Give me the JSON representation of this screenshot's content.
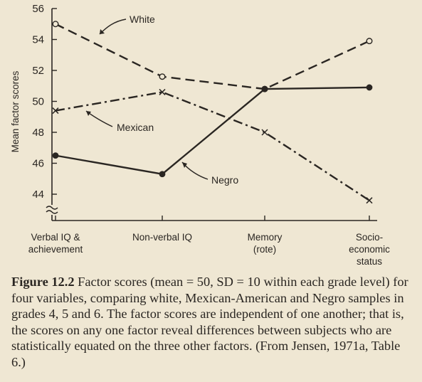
{
  "chart_data": {
    "type": "line",
    "ylabel": "Mean factor scores",
    "ylim": [
      43,
      56
    ],
    "y_ticks": [
      "56",
      "54",
      "52",
      "50",
      "48",
      "46",
      "44"
    ],
    "y_axis_break": true,
    "categories": [
      [
        "Verbal IQ &",
        "achievement"
      ],
      [
        "Non-verbal IQ"
      ],
      [
        "Memory",
        "(rote)"
      ],
      [
        "Socio-",
        "economic",
        "status"
      ]
    ],
    "series": [
      {
        "name": "White",
        "values": [
          55.0,
          51.6,
          50.8,
          53.9
        ],
        "line": "dashed",
        "marker": "open-circle"
      },
      {
        "name": "Mexican",
        "values": [
          49.4,
          50.6,
          48.0,
          43.6
        ],
        "line": "dash-dot",
        "marker": "x"
      },
      {
        "name": "Negro",
        "values": [
          46.5,
          45.3,
          50.8,
          50.9
        ],
        "line": "solid",
        "marker": "filled-circle"
      }
    ]
  },
  "caption": {
    "figure_number": "Figure 12.2",
    "text": "Factor scores (mean = 50, SD = 10 within each grade level) for four variables, comparing white, Mexican-American and Negro samples in grades 4, 5 and 6. The factor scores are independent of one another; that is, the scores on any one factor reveal differences between subjects who are statistically equated on the three other factors. (From Jensen, 1971a, Table 6.)"
  }
}
